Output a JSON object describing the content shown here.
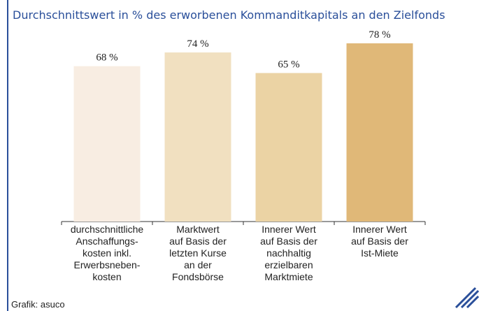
{
  "chart_data": {
    "type": "bar",
    "title": "Durchschnittswert in % des erworbenen Kommanditkapitals an den Zielfonds",
    "categories": [
      "durchschnittliche\nAnschaffungs-\nkosten inkl.\nErwerbsneben-\nkosten",
      "Marktwert\nauf Basis der\nletzten Kurse\nan der\nFondsbörse",
      "Innerer Wert\nauf Basis der\nnachhaltig\nerzielbaren\nMarktmiete",
      "Innerer Wert\nauf Basis der\nIst-Miete"
    ],
    "values": [
      68,
      74,
      65,
      78
    ],
    "value_labels": [
      "68 %",
      "74 %",
      "65 %",
      "78 %"
    ],
    "colors": [
      "#f8ede2",
      "#f1e0c0",
      "#ebd3a4",
      "#e0b878"
    ],
    "source": "Grafik: asuco"
  }
}
